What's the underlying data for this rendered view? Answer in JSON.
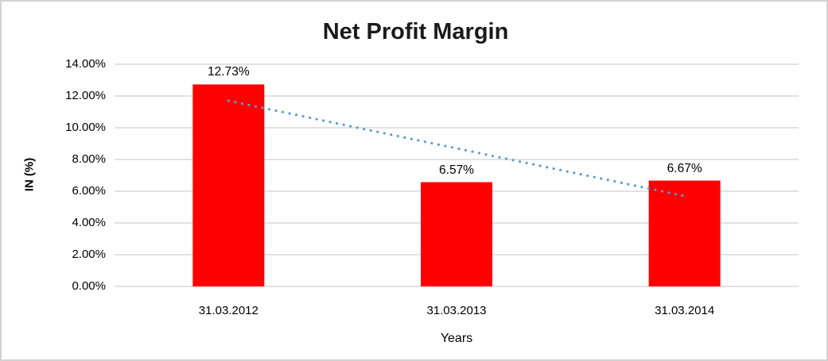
{
  "chart_data": {
    "type": "bar",
    "title": "Net Profit Margin",
    "xlabel": "Years",
    "ylabel": "IN (%)",
    "categories": [
      "31.03.2012",
      "31.03.2013",
      "31.03.2014"
    ],
    "series": [
      {
        "name": "Net Profit Margin",
        "values": [
          12.73,
          6.57,
          6.67
        ]
      }
    ],
    "data_labels": [
      "12.73%",
      "6.57%",
      "6.67%"
    ],
    "y_ticks": [
      "14.00%",
      "12.00%",
      "10.00%",
      "8.00%",
      "6.00%",
      "4.00%",
      "2.00%",
      "0.00%"
    ],
    "ylim": [
      0,
      14
    ],
    "y_tick_step": 2,
    "grid": true,
    "legend": "none",
    "bar_color": "#ff0000",
    "gridline_color": "#d9d9d9",
    "text_color": "#000000",
    "trendline": {
      "type": "linear",
      "style": "dotted",
      "color": "#5b9bd5",
      "start_value": 11.7,
      "end_value": 5.7
    }
  }
}
